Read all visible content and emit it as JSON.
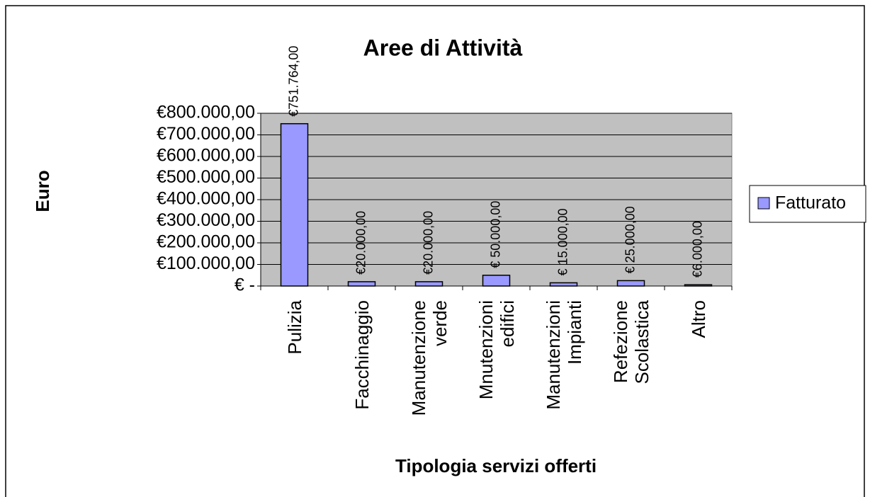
{
  "chart_data": {
    "type": "bar",
    "title": "Aree di Attività",
    "x_label": "Tipologia servizi offerti",
    "y_label": "Euro",
    "categories": [
      "Pulizia",
      "Facchinaggio",
      "Manutenzione verde",
      "Mnutenzioni edifici",
      "Manutenzioni Impianti",
      "Refezione Scolastica",
      "Altro"
    ],
    "series": [
      {
        "name": "Fatturato",
        "color": "#9999ff",
        "values": [
          751764,
          20000,
          20000,
          50000,
          15000,
          25000,
          6000
        ],
        "value_labels": [
          "€751.764,00",
          "€20.000,00",
          "€20.000,00",
          "€ 50.000,00",
          "€ 15.000,00",
          "€ 25.000,00",
          "€6.000,00"
        ]
      }
    ],
    "ylim": [
      0,
      800000
    ],
    "yticks": [
      {
        "value": 0,
        "label": "€ -"
      },
      {
        "value": 100000,
        "label": "€100.000,00"
      },
      {
        "value": 200000,
        "label": "€200.000,00"
      },
      {
        "value": 300000,
        "label": "€300.000,00"
      },
      {
        "value": 400000,
        "label": "€400.000,00"
      },
      {
        "value": 500000,
        "label": "€500.000,00"
      },
      {
        "value": 600000,
        "label": "€600.000,00"
      },
      {
        "value": 700000,
        "label": "€700.000,00"
      },
      {
        "value": 800000,
        "label": "€800.000,00"
      }
    ],
    "grid": true,
    "plot_background": "#c0c0c0",
    "legend": "right"
  }
}
